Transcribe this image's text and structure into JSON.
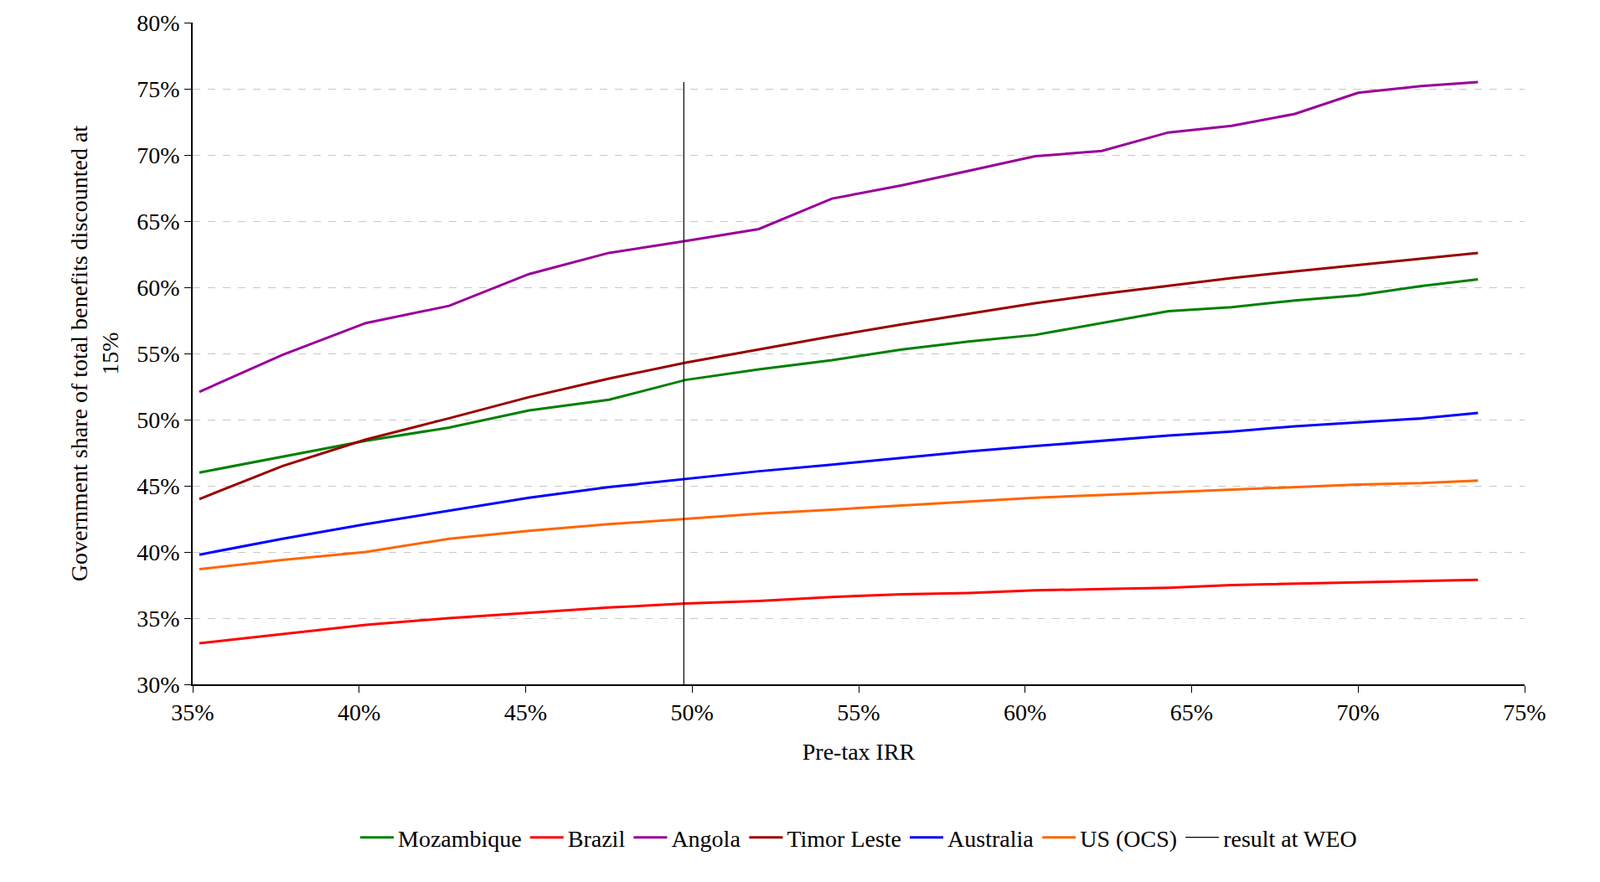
{
  "chart_data": {
    "type": "line",
    "x_label": "Pre-tax IRR",
    "y_label": "Government share of total benefits discounted at 15%",
    "x": [
      35.2,
      37.7,
      40.2,
      42.7,
      45.1,
      47.5,
      49.8,
      52.0,
      54.2,
      56.3,
      58.3,
      60.3,
      62.3,
      64.3,
      66.2,
      68.1,
      70.0,
      71.9,
      73.6
    ],
    "series": [
      {
        "name": "Mozambique",
        "color": "#008000",
        "line_style": "solid",
        "values": [
          46.0,
          47.2,
          48.4,
          49.4,
          50.7,
          51.5,
          53.0,
          53.8,
          54.5,
          55.3,
          55.9,
          56.4,
          57.3,
          58.2,
          58.5,
          59.0,
          59.4,
          60.1,
          60.6
        ]
      },
      {
        "name": "Brazil",
        "color": "#ff0000",
        "line_style": "solid",
        "values": [
          33.1,
          33.8,
          34.5,
          35.0,
          35.4,
          35.8,
          36.1,
          36.3,
          36.6,
          36.8,
          36.9,
          37.1,
          37.2,
          37.3,
          37.5,
          37.6,
          37.7,
          37.8,
          37.9
        ]
      },
      {
        "name": "Angola",
        "color": "#990099",
        "line_style": "solid",
        "values": [
          52.1,
          54.9,
          57.3,
          58.6,
          61.0,
          62.6,
          63.5,
          64.4,
          66.7,
          67.7,
          68.8,
          69.9,
          70.3,
          71.7,
          72.2,
          73.1,
          74.7,
          75.2,
          75.5
        ]
      },
      {
        "name": "Timor Leste",
        "color": "#990000",
        "line_style": "solid",
        "values": [
          44.0,
          46.5,
          48.5,
          50.1,
          51.7,
          53.1,
          54.3,
          55.3,
          56.3,
          57.2,
          58.0,
          58.8,
          59.5,
          60.1,
          60.7,
          61.2,
          61.7,
          62.2,
          62.6
        ]
      },
      {
        "name": "Australia",
        "color": "#0000ff",
        "line_style": "solid",
        "values": [
          39.8,
          41.0,
          42.1,
          43.1,
          44.1,
          44.9,
          45.5,
          46.1,
          46.6,
          47.1,
          47.6,
          48.0,
          48.4,
          48.8,
          49.1,
          49.5,
          49.8,
          50.1,
          50.5
        ]
      },
      {
        "name": "US (OCS)",
        "color": "#ff6600",
        "line_style": "solid",
        "values": [
          38.7,
          39.4,
          40.0,
          41.0,
          41.6,
          42.1,
          42.5,
          42.9,
          43.2,
          43.5,
          43.8,
          44.1,
          44.3,
          44.5,
          44.7,
          44.9,
          45.1,
          45.2,
          45.4
        ]
      },
      {
        "name": "result at WEO",
        "color": "#000000",
        "line_style": "solid",
        "x": [
          49.75,
          49.75
        ],
        "values": [
          30,
          75.5
        ]
      }
    ],
    "xlim": [
      35,
      75
    ],
    "xticks": [
      {
        "value": 35,
        "label": "35%"
      },
      {
        "value": 40,
        "label": "40%"
      },
      {
        "value": 45,
        "label": "45%"
      },
      {
        "value": 50,
        "label": "50%"
      },
      {
        "value": 55,
        "label": "55%"
      },
      {
        "value": 60,
        "label": "60%"
      },
      {
        "value": 65,
        "label": "65%"
      },
      {
        "value": 70,
        "label": "70%"
      },
      {
        "value": 75,
        "label": "75%"
      }
    ],
    "ylim": [
      30,
      80
    ],
    "yticks": [
      {
        "value": 30,
        "label": "30%"
      },
      {
        "value": 35,
        "label": "35%"
      },
      {
        "value": 40,
        "label": "40%"
      },
      {
        "value": 45,
        "label": "45%"
      },
      {
        "value": 50,
        "label": "50%"
      },
      {
        "value": 55,
        "label": "55%"
      },
      {
        "value": 60,
        "label": "60%"
      },
      {
        "value": 65,
        "label": "65%"
      },
      {
        "value": 70,
        "label": "70%"
      },
      {
        "value": 75,
        "label": "75%"
      },
      {
        "value": 80,
        "label": "80%"
      }
    ],
    "grid": true,
    "legend": "bottom"
  }
}
